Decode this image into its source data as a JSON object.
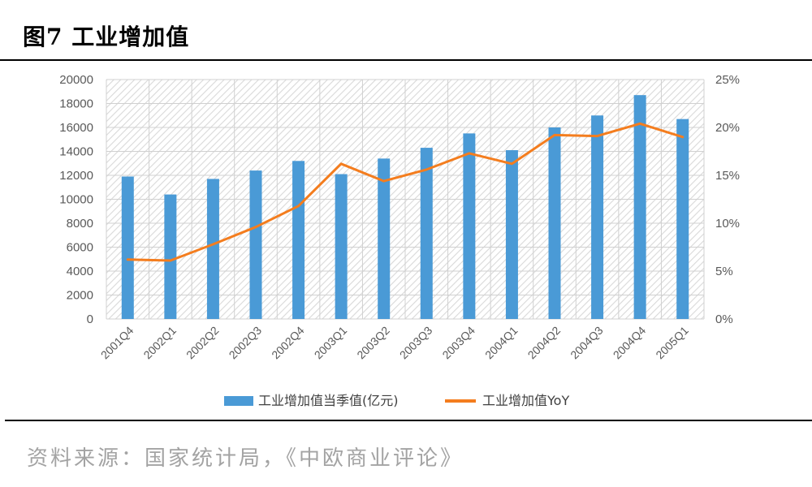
{
  "figure": {
    "title": "图7 工业增加值",
    "source": "资料来源：国家统计局，《中欧商业评论》"
  },
  "chart_data": {
    "type": "bar",
    "categories": [
      "2001Q4",
      "2002Q1",
      "2002Q2",
      "2002Q3",
      "2002Q4",
      "2003Q1",
      "2003Q2",
      "2003Q3",
      "2003Q4",
      "2004Q1",
      "2004Q2",
      "2004Q3",
      "2004Q4",
      "2005Q1"
    ],
    "series": [
      {
        "name": "工业增加值当季值(亿元)",
        "type": "bar",
        "axis": "left",
        "color": "#4a9ad6",
        "values": [
          11900,
          10400,
          11700,
          12400,
          13200,
          12100,
          13400,
          14300,
          15500,
          14100,
          16000,
          17000,
          18700,
          16700
        ]
      },
      {
        "name": "工业增加值YoY",
        "type": "line",
        "axis": "right",
        "color": "#f47d1e",
        "values": [
          6.2,
          6.1,
          7.8,
          9.6,
          11.8,
          16.2,
          14.4,
          15.6,
          17.3,
          16.2,
          19.2,
          19.1,
          20.4,
          19.0
        ]
      }
    ],
    "ylim_left": [
      0,
      20000
    ],
    "yticks_left": [
      "0",
      "2000",
      "4000",
      "6000",
      "8000",
      "10000",
      "12000",
      "14000",
      "16000",
      "18000",
      "20000"
    ],
    "ylim_right": [
      0,
      25
    ],
    "yticks_right": [
      "0%",
      "5%",
      "10%",
      "15%",
      "20%",
      "25%"
    ],
    "grid": true,
    "legend": "bottom-center"
  }
}
